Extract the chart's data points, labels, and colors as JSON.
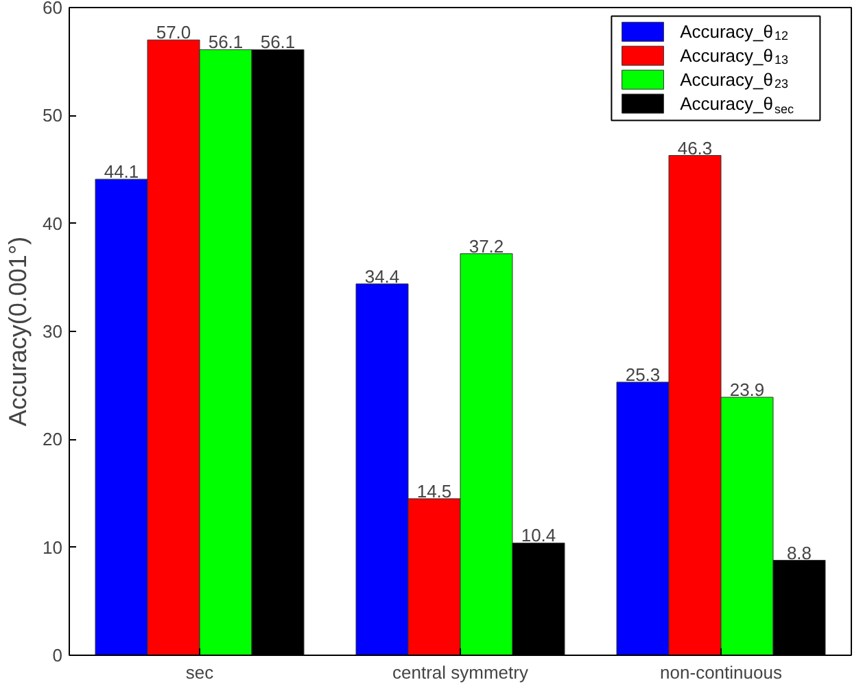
{
  "chart_data": {
    "type": "bar",
    "ylabel": "Accuracy(0.001°)",
    "categories": [
      "sec",
      "central symmetry",
      "non-continuous"
    ],
    "series": [
      {
        "name": "Accuracy_θ$_{12}$",
        "color": "#0000ff",
        "values": [
          44.1,
          34.4,
          25.3
        ],
        "value_labels": [
          "44.1",
          "34.4",
          "25.3"
        ]
      },
      {
        "name": "Accuracy_θ$_{13}$",
        "color": "#ff0000",
        "values": [
          57.0,
          14.5,
          46.3
        ],
        "value_labels": [
          "57.0",
          "14.5",
          "46.3"
        ]
      },
      {
        "name": "Accuracy_θ$_{23}$",
        "color": "#00ff00",
        "values": [
          56.1,
          37.2,
          23.9
        ],
        "value_labels": [
          "56.1",
          "37.2",
          "23.9"
        ]
      },
      {
        "name": "Accuracy_θ$_{sec}$",
        "color": "#000000",
        "values": [
          56.1,
          10.4,
          8.8
        ],
        "value_labels": [
          "56.1",
          "10.4",
          "8.8"
        ]
      }
    ],
    "ylim": [
      0,
      60
    ],
    "yticks": [
      0,
      10,
      20,
      30,
      40,
      50,
      60
    ],
    "grid": false,
    "legend": "top right"
  }
}
